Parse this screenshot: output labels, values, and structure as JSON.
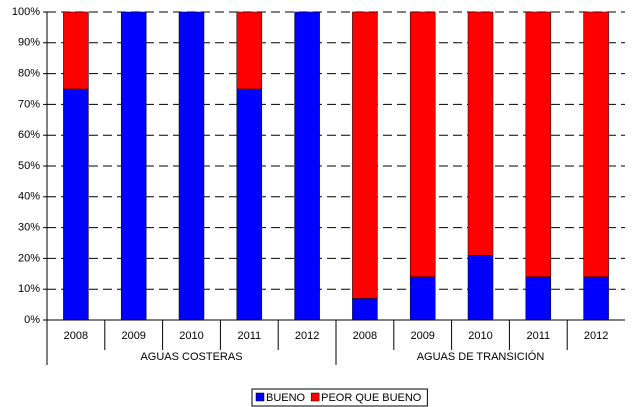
{
  "chart_data": {
    "type": "stacked-bar",
    "groups": [
      {
        "name": "AGUAS COSTERAS",
        "categories": [
          "2008",
          "2009",
          "2010",
          "2011",
          "2012"
        ]
      },
      {
        "name": "AGUAS DE TRANSICIÓN",
        "categories": [
          "2008",
          "2009",
          "2010",
          "2011",
          "2012"
        ]
      }
    ],
    "series": [
      {
        "name": "BUENO",
        "color": "#0000ff",
        "values": [
          75,
          100,
          100,
          75,
          100,
          7,
          14,
          21,
          14,
          14
        ]
      },
      {
        "name": "PEOR QUE BUENO",
        "color": "#ff0000",
        "values": [
          25,
          0,
          0,
          25,
          0,
          93,
          86,
          79,
          86,
          86
        ]
      }
    ],
    "ylim": [
      0,
      100
    ],
    "yticks": [
      {
        "value": 0,
        "label": "0%"
      },
      {
        "value": 10,
        "label": "10%"
      },
      {
        "value": 20,
        "label": "20%"
      },
      {
        "value": 30,
        "label": "30%"
      },
      {
        "value": 40,
        "label": "40%"
      },
      {
        "value": 50,
        "label": "50%"
      },
      {
        "value": 60,
        "label": "60%"
      },
      {
        "value": 70,
        "label": "70%"
      },
      {
        "value": 80,
        "label": "80%"
      },
      {
        "value": 90,
        "label": "90%"
      },
      {
        "value": 100,
        "label": "100%"
      }
    ],
    "grid": true,
    "legend": "bottom"
  }
}
